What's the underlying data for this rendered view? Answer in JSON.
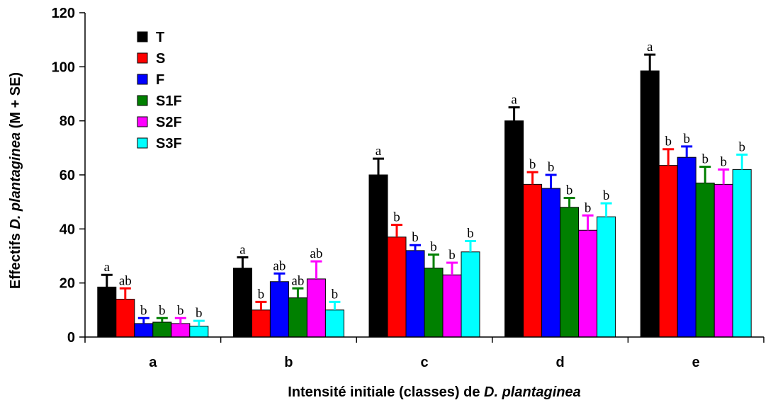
{
  "chart_data": {
    "type": "bar",
    "ylabel_prefix": "Effectifs ",
    "ylabel_italic": "D. plantaginea",
    "ylabel_suffix": " (M + SE)",
    "xlabel_prefix": "Intensité initiale (classes) de ",
    "xlabel_italic": "D. plantaginea",
    "ylim": [
      0,
      120
    ],
    "yticks": [
      "0",
      "20",
      "40",
      "60",
      "80",
      "100",
      "120"
    ],
    "categories": [
      "a",
      "b",
      "c",
      "d",
      "e"
    ],
    "legend_position": "top-left",
    "series": [
      {
        "name": "T",
        "color": "#000000",
        "values": [
          18.5,
          25.5,
          60,
          80,
          98.5
        ],
        "errors": [
          4.5,
          4,
          6,
          5,
          6
        ],
        "letters": [
          "a",
          "a",
          "a",
          "a",
          "a"
        ]
      },
      {
        "name": "S",
        "color": "#ff0000",
        "values": [
          14,
          10,
          37,
          56.5,
          63.5
        ],
        "errors": [
          4,
          3,
          4.5,
          4.5,
          6
        ],
        "letters": [
          "ab",
          "b",
          "b",
          "b",
          "b"
        ]
      },
      {
        "name": "F",
        "color": "#0000ff",
        "values": [
          5,
          20.5,
          32,
          55,
          66.5
        ],
        "errors": [
          2,
          3,
          2,
          5,
          4
        ],
        "letters": [
          "b",
          "ab",
          "b",
          "b",
          "b"
        ]
      },
      {
        "name": "S1F",
        "color": "#008000",
        "values": [
          5.5,
          14.5,
          25.5,
          48,
          57
        ],
        "errors": [
          1.5,
          3.5,
          5,
          3.5,
          6
        ],
        "letters": [
          "b",
          "ab",
          "b",
          "b",
          "b"
        ]
      },
      {
        "name": "S2F",
        "color": "#ff00ff",
        "values": [
          5,
          21.5,
          23,
          39.5,
          56.5
        ],
        "errors": [
          2,
          6.5,
          4.5,
          5.5,
          5.5
        ],
        "letters": [
          "b",
          "ab",
          "b",
          "b",
          "b"
        ]
      },
      {
        "name": "S3F",
        "color": "#00ffff",
        "values": [
          4,
          10,
          31.5,
          44.5,
          62
        ],
        "errors": [
          2,
          3,
          4,
          5,
          5.5
        ],
        "letters": [
          "b",
          "b",
          "b",
          "b",
          "b"
        ]
      }
    ]
  }
}
